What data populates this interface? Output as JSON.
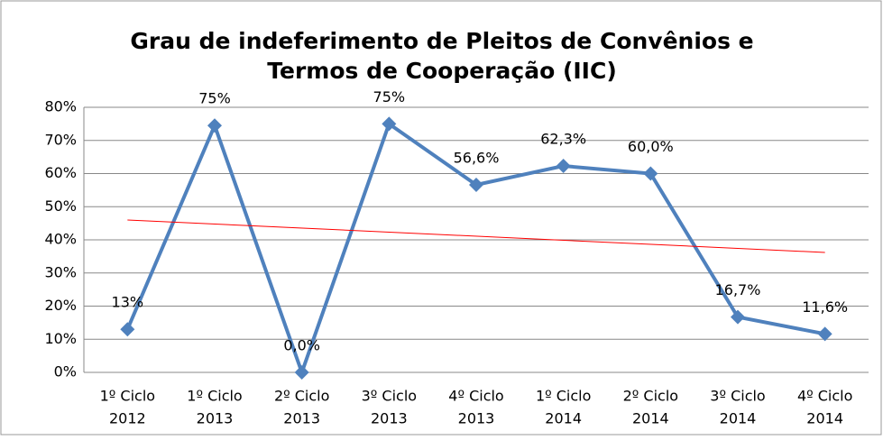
{
  "chart_data": {
    "type": "line",
    "title": [
      "Grau de indeferimento de Pleitos de Convênios e",
      "Termos de Cooperação (IIC)"
    ],
    "categories": [
      [
        "1º Ciclo",
        "2012"
      ],
      [
        "1º  Ciclo",
        "2013"
      ],
      [
        "2º Ciclo",
        "2013"
      ],
      [
        "3º Ciclo",
        "2013"
      ],
      [
        "4º Ciclo",
        "2013"
      ],
      [
        "1º Ciclo",
        "2014"
      ],
      [
        "2º Ciclo",
        "2014"
      ],
      [
        "3º Ciclo",
        "2014"
      ],
      [
        "4º Ciclo",
        "2014"
      ]
    ],
    "series": [
      {
        "name": "IIC",
        "color": "#4f81bd",
        "values": [
          13,
          74.5,
          0.0,
          75,
          56.6,
          62.3,
          60.0,
          16.7,
          11.6
        ],
        "value_labels": [
          "13%",
          "75%",
          "0,0%",
          "75%",
          "56,6%",
          "62,3%",
          "60,0%",
          "16,7%",
          "11,6%"
        ]
      }
    ],
    "trendline": {
      "color": "#ff0000",
      "values": [
        46.0,
        36.2
      ]
    },
    "ylim": [
      0,
      80
    ],
    "yticks": [
      {
        "value": 0,
        "label": "0%"
      },
      {
        "value": 10,
        "label": "10%"
      },
      {
        "value": 20,
        "label": "20%"
      },
      {
        "value": 30,
        "label": "30%"
      },
      {
        "value": 40,
        "label": "40%"
      },
      {
        "value": 50,
        "label": "50%"
      },
      {
        "value": 60,
        "label": "60%"
      },
      {
        "value": 70,
        "label": "70%"
      },
      {
        "value": 80,
        "label": "80%"
      }
    ],
    "grid": true
  }
}
